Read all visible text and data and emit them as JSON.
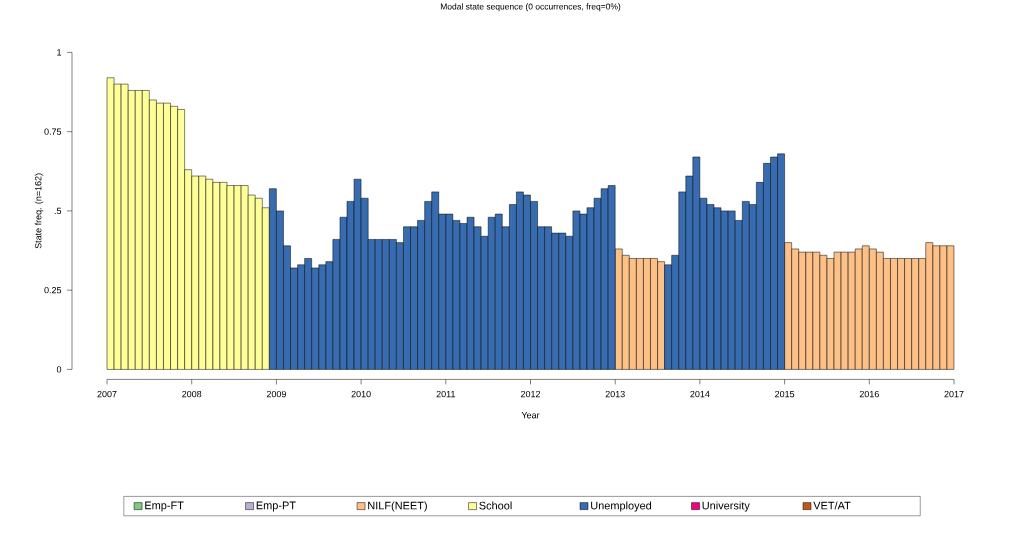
{
  "chart_data": {
    "type": "bar",
    "title": "Modal state sequence (0 occurrences, freq=0%)",
    "xlabel": "Year",
    "ylabel": "State freq. (n=162)",
    "x": [
      2007.042,
      2007.125,
      2007.208,
      2007.292,
      2007.375,
      2007.458,
      2007.542,
      2007.625,
      2007.708,
      2007.792,
      2007.875,
      2007.958,
      2008.042,
      2008.125,
      2008.208,
      2008.292,
      2008.375,
      2008.458,
      2008.542,
      2008.625,
      2008.708,
      2008.792,
      2008.875,
      2008.958,
      2009.042,
      2009.125,
      2009.208,
      2009.292,
      2009.375,
      2009.458,
      2009.542,
      2009.625,
      2009.708,
      2009.792,
      2009.875,
      2009.958,
      2010.042,
      2010.125,
      2010.208,
      2010.292,
      2010.375,
      2010.458,
      2010.542,
      2010.625,
      2010.708,
      2010.792,
      2010.875,
      2010.958,
      2011.042,
      2011.125,
      2011.208,
      2011.292,
      2011.375,
      2011.458,
      2011.542,
      2011.625,
      2011.708,
      2011.792,
      2011.875,
      2011.958,
      2012.042,
      2012.125,
      2012.208,
      2012.292,
      2012.375,
      2012.458,
      2012.542,
      2012.625,
      2012.708,
      2012.792,
      2012.875,
      2012.958,
      2013.042,
      2013.125,
      2013.208,
      2013.292,
      2013.375,
      2013.458,
      2013.542,
      2013.625,
      2013.708,
      2013.792,
      2013.875,
      2013.958,
      2014.042,
      2014.125,
      2014.208,
      2014.292,
      2014.375,
      2014.458,
      2014.542,
      2014.625,
      2014.708,
      2014.792,
      2014.875,
      2014.958,
      2015.042,
      2015.125,
      2015.208,
      2015.292,
      2015.375,
      2015.458,
      2015.542,
      2015.625,
      2015.708,
      2015.792,
      2015.875,
      2015.958,
      2016.042,
      2016.125,
      2016.208,
      2016.292,
      2016.375,
      2016.458,
      2016.542,
      2016.625,
      2016.708,
      2016.792,
      2016.875,
      2016.958
    ],
    "series": [
      {
        "name": "Emp-FT",
        "color": "#7fc97f",
        "values": [
          null,
          null,
          null,
          null,
          null,
          null,
          null,
          null,
          null,
          null,
          null,
          null,
          null,
          null,
          null,
          null,
          null,
          null,
          null,
          null,
          null,
          null,
          null,
          null,
          null,
          null,
          null,
          null,
          null,
          null,
          null,
          null,
          null,
          null,
          null,
          null,
          null,
          null,
          null,
          null,
          null,
          null,
          null,
          null,
          null,
          null,
          null,
          null,
          null,
          null,
          null,
          null,
          null,
          null,
          null,
          null,
          null,
          null,
          null,
          null,
          null,
          null,
          null,
          null,
          null,
          null,
          null,
          null,
          null,
          null,
          null,
          null,
          null,
          null,
          null,
          null,
          null,
          null,
          null,
          null,
          null,
          null,
          null,
          null,
          null,
          null,
          null,
          null,
          null,
          null,
          null,
          null,
          null,
          null,
          null,
          null,
          null,
          null,
          null,
          null,
          null,
          null,
          null,
          null,
          null,
          null,
          null,
          null,
          null,
          null,
          null,
          null,
          null,
          null,
          null,
          null,
          null,
          null,
          null,
          null
        ]
      },
      {
        "name": "Emp-PT",
        "color": "#beaed4",
        "values": [
          null,
          null,
          null,
          null,
          null,
          null,
          null,
          null,
          null,
          null,
          null,
          null,
          null,
          null,
          null,
          null,
          null,
          null,
          null,
          null,
          null,
          null,
          null,
          null,
          null,
          null,
          null,
          null,
          null,
          null,
          null,
          null,
          null,
          null,
          null,
          null,
          null,
          null,
          null,
          null,
          null,
          null,
          null,
          null,
          null,
          null,
          null,
          null,
          null,
          null,
          null,
          null,
          null,
          null,
          null,
          null,
          null,
          null,
          null,
          null,
          null,
          null,
          null,
          null,
          null,
          null,
          null,
          null,
          null,
          null,
          null,
          null,
          null,
          null,
          null,
          null,
          null,
          null,
          null,
          null,
          null,
          null,
          null,
          null,
          null,
          null,
          null,
          null,
          null,
          null,
          null,
          null,
          null,
          null,
          null,
          null,
          null,
          null,
          null,
          null,
          null,
          null,
          null,
          null,
          null,
          null,
          null,
          null,
          null,
          null,
          null,
          null,
          null,
          null,
          null,
          null,
          null,
          null,
          null,
          null
        ]
      },
      {
        "name": "NILF(NEET)",
        "color": "#fdc086",
        "values": [
          null,
          null,
          null,
          null,
          null,
          null,
          null,
          null,
          null,
          null,
          null,
          null,
          null,
          null,
          null,
          null,
          null,
          null,
          null,
          null,
          null,
          null,
          null,
          null,
          null,
          null,
          null,
          null,
          null,
          null,
          null,
          null,
          null,
          null,
          null,
          null,
          null,
          null,
          null,
          null,
          null,
          null,
          null,
          null,
          null,
          null,
          null,
          null,
          null,
          null,
          null,
          null,
          null,
          null,
          null,
          null,
          null,
          null,
          null,
          null,
          null,
          null,
          null,
          null,
          null,
          null,
          null,
          null,
          null,
          null,
          null,
          null,
          0.38,
          0.36,
          0.35,
          0.35,
          0.35,
          0.35,
          0.34,
          null,
          null,
          null,
          null,
          null,
          null,
          null,
          null,
          null,
          null,
          null,
          null,
          null,
          null,
          null,
          null,
          null,
          0.4,
          0.38,
          0.37,
          0.37,
          0.37,
          0.36,
          0.35,
          0.37,
          0.37,
          0.37,
          0.38,
          0.39,
          0.38,
          0.37,
          0.35,
          0.35,
          0.35,
          0.35,
          0.35,
          0.35,
          0.4,
          0.39,
          0.39,
          0.39
        ]
      },
      {
        "name": "School",
        "color": "#ffff99",
        "values": [
          0.92,
          0.9,
          0.9,
          0.88,
          0.88,
          0.88,
          0.85,
          0.84,
          0.84,
          0.83,
          0.82,
          0.63,
          0.61,
          0.61,
          0.6,
          0.59,
          0.59,
          0.58,
          0.58,
          0.58,
          0.55,
          0.54,
          0.51,
          null,
          null,
          null,
          null,
          null,
          null,
          null,
          null,
          null,
          null,
          null,
          null,
          null,
          null,
          null,
          null,
          null,
          null,
          null,
          null,
          null,
          null,
          null,
          null,
          null,
          null,
          null,
          null,
          null,
          null,
          null,
          null,
          null,
          null,
          null,
          null,
          null,
          null,
          null,
          null,
          null,
          null,
          null,
          null,
          null,
          null,
          null,
          null,
          null,
          null,
          null,
          null,
          null,
          null,
          null,
          null,
          null,
          null,
          null,
          null,
          null,
          null,
          null,
          null,
          null,
          null,
          null,
          null,
          null,
          null,
          null,
          null,
          null,
          null,
          null,
          null,
          null,
          null,
          null,
          null,
          null,
          null,
          null,
          null,
          null,
          null,
          null,
          null,
          null,
          null,
          null,
          null,
          null,
          null,
          null,
          null,
          null
        ]
      },
      {
        "name": "Unemployed",
        "color": "#386cb0",
        "values": [
          null,
          null,
          null,
          null,
          null,
          null,
          null,
          null,
          null,
          null,
          null,
          null,
          null,
          null,
          null,
          null,
          null,
          null,
          null,
          null,
          null,
          null,
          null,
          0.57,
          0.5,
          0.39,
          0.32,
          0.33,
          0.35,
          0.32,
          0.33,
          0.34,
          0.41,
          0.48,
          0.53,
          0.6,
          0.54,
          0.41,
          0.41,
          0.41,
          0.41,
          0.4,
          0.45,
          0.45,
          0.47,
          0.53,
          0.56,
          0.49,
          0.49,
          0.47,
          0.46,
          0.48,
          0.45,
          0.42,
          0.48,
          0.49,
          0.45,
          0.52,
          0.56,
          0.55,
          0.53,
          0.45,
          0.45,
          0.43,
          0.43,
          0.42,
          0.5,
          0.49,
          0.51,
          0.54,
          0.57,
          0.58,
          null,
          null,
          null,
          null,
          null,
          null,
          null,
          0.33,
          0.36,
          0.56,
          0.61,
          0.67,
          0.54,
          0.52,
          0.51,
          0.5,
          0.5,
          0.47,
          0.53,
          0.52,
          0.59,
          0.65,
          0.67,
          0.68,
          null,
          null,
          null,
          null,
          null,
          null,
          null,
          null,
          null,
          null,
          null,
          null,
          null,
          null,
          null,
          null,
          null,
          null,
          null,
          null,
          null,
          null,
          null,
          null
        ]
      },
      {
        "name": "University",
        "color": "#f0027f",
        "values": [
          null,
          null,
          null,
          null,
          null,
          null,
          null,
          null,
          null,
          null,
          null,
          null,
          null,
          null,
          null,
          null,
          null,
          null,
          null,
          null,
          null,
          null,
          null,
          null,
          null,
          null,
          null,
          null,
          null,
          null,
          null,
          null,
          null,
          null,
          null,
          null,
          null,
          null,
          null,
          null,
          null,
          null,
          null,
          null,
          null,
          null,
          null,
          null,
          null,
          null,
          null,
          null,
          null,
          null,
          null,
          null,
          null,
          null,
          null,
          null,
          null,
          null,
          null,
          null,
          null,
          null,
          null,
          null,
          null,
          null,
          null,
          null,
          null,
          null,
          null,
          null,
          null,
          null,
          null,
          null,
          null,
          null,
          null,
          null,
          null,
          null,
          null,
          null,
          null,
          null,
          null,
          null,
          null,
          null,
          null,
          null,
          null,
          null,
          null,
          null,
          null,
          null,
          null,
          null,
          null,
          null,
          null,
          null,
          null,
          null,
          null,
          null,
          null,
          null,
          null,
          null,
          null,
          null,
          null,
          null
        ]
      },
      {
        "name": "VET/AT",
        "color": "#bf5b17",
        "values": [
          null,
          null,
          null,
          null,
          null,
          null,
          null,
          null,
          null,
          null,
          null,
          null,
          null,
          null,
          null,
          null,
          null,
          null,
          null,
          null,
          null,
          null,
          null,
          null,
          null,
          null,
          null,
          null,
          null,
          null,
          null,
          null,
          null,
          null,
          null,
          null,
          null,
          null,
          null,
          null,
          null,
          null,
          null,
          null,
          null,
          null,
          null,
          null,
          null,
          null,
          null,
          null,
          null,
          null,
          null,
          null,
          null,
          null,
          null,
          null,
          null,
          null,
          null,
          null,
          null,
          null,
          null,
          null,
          null,
          null,
          null,
          null,
          null,
          null,
          null,
          null,
          null,
          null,
          null,
          null,
          null,
          null,
          null,
          null,
          null,
          null,
          null,
          null,
          null,
          null,
          null,
          null,
          null,
          null,
          null,
          null,
          null,
          null,
          null,
          null,
          null,
          null,
          null,
          null,
          null,
          null,
          null,
          null,
          null,
          null,
          null,
          null,
          null,
          null,
          null,
          null,
          null,
          null,
          null,
          null
        ]
      }
    ],
    "xlim": [
      2007,
      2017
    ],
    "xticks": [
      2007,
      2008,
      2009,
      2010,
      2011,
      2012,
      2013,
      2014,
      2015,
      2016,
      2017
    ],
    "ylim": [
      0,
      1
    ],
    "yticks": [
      0,
      0.25,
      {
        "value": 0.5,
        "label": ".5"
      },
      0.75,
      1
    ],
    "legend": "bottom"
  }
}
